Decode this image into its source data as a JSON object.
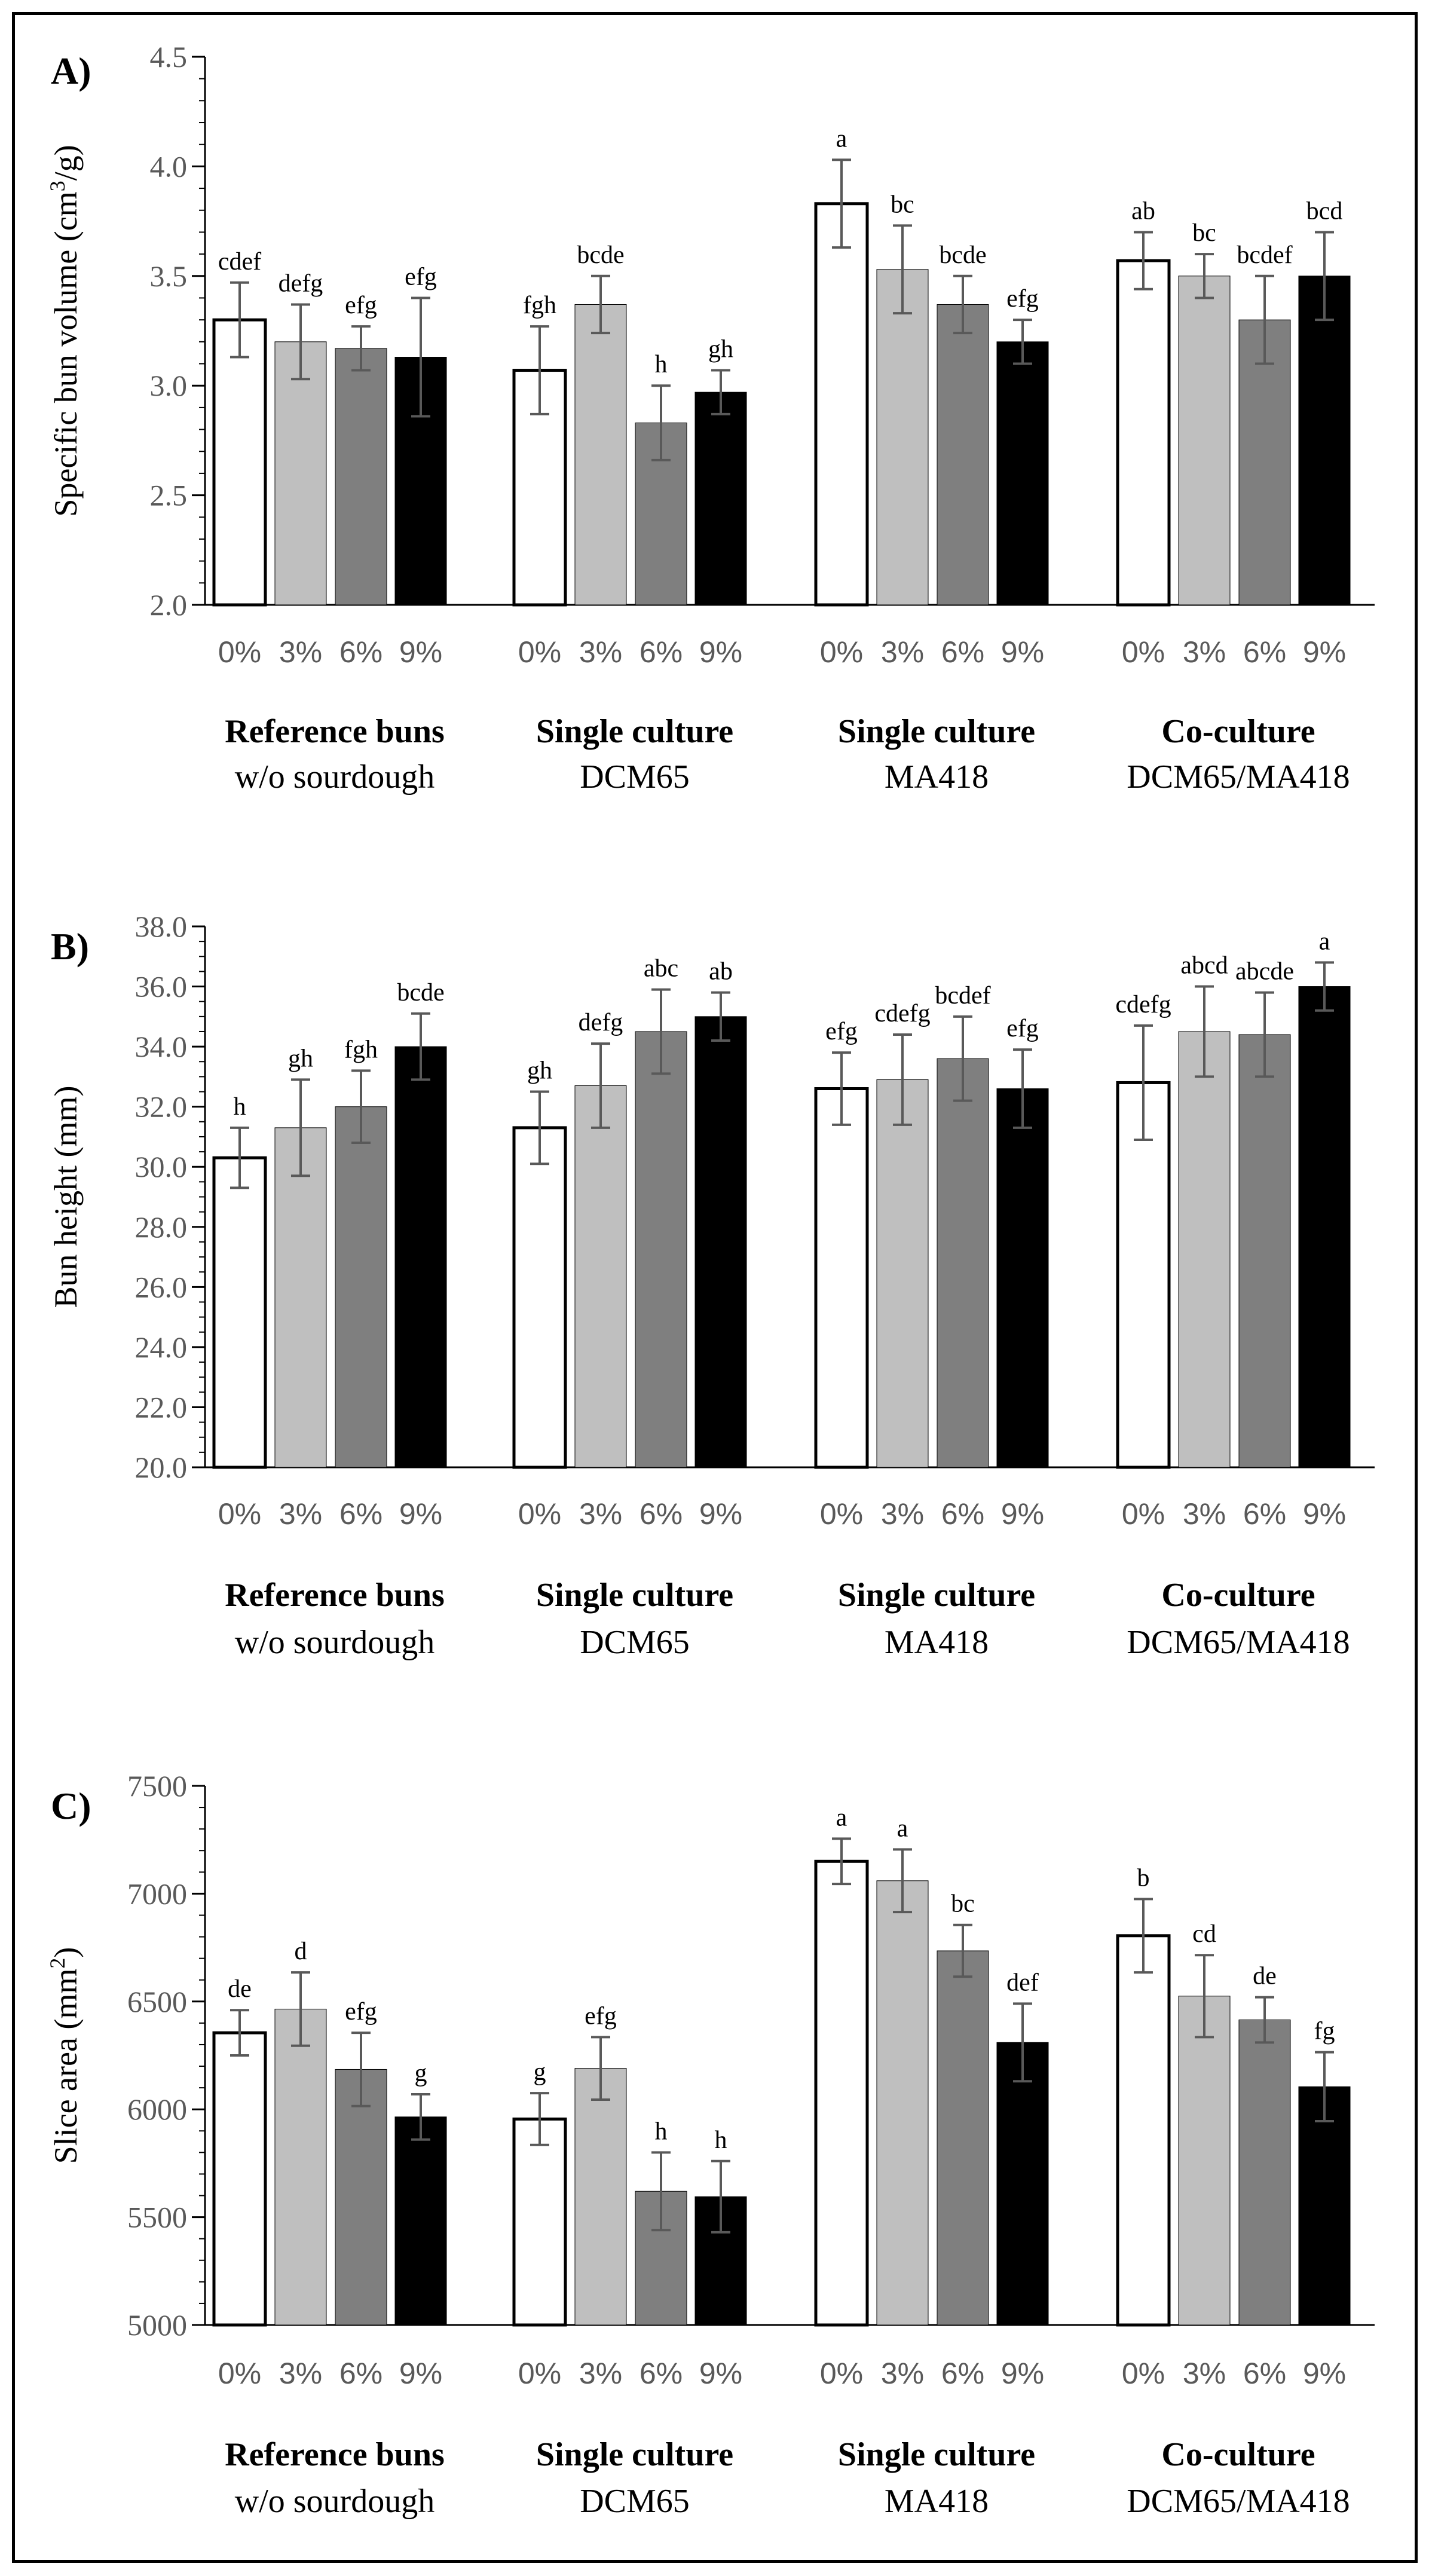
{
  "chart_data": [
    {
      "type": "bar",
      "panel_label": "A)",
      "ylabel_main": "Specific bun volume (cm",
      "ylabel_sup": "3",
      "ylabel_tail": "/g)",
      "ylim": [
        2.0,
        4.5
      ],
      "yticks": [
        "2.0",
        "2.5",
        "3.0",
        "3.5",
        "4.0",
        "4.5"
      ],
      "ytick_values": [
        2.0,
        2.5,
        3.0,
        3.5,
        4.0,
        4.5
      ],
      "minor_step": 0.1,
      "series_names": [
        "0%",
        "3%",
        "6%",
        "9%"
      ],
      "series_colors": [
        "#ffffff",
        "#bfbfbf",
        "#7f7f7f",
        "#000000"
      ],
      "groups": [
        {
          "title": "Reference buns",
          "subtitle": "w/o sourdough",
          "categories": [
            "0%",
            "3%",
            "6%",
            "9%"
          ],
          "values": [
            3.3,
            3.2,
            3.17,
            3.13
          ],
          "errors": [
            0.17,
            0.17,
            0.1,
            0.27
          ],
          "letters": [
            "cdef",
            "defg",
            "efg",
            "efg"
          ]
        },
        {
          "title": "Single culture",
          "subtitle": "DCM65",
          "categories": [
            "0%",
            "3%",
            "6%",
            "9%"
          ],
          "values": [
            3.07,
            3.37,
            2.83,
            2.97
          ],
          "errors": [
            0.2,
            0.13,
            0.17,
            0.1
          ],
          "letters": [
            "fgh",
            "bcde",
            "h",
            "gh"
          ]
        },
        {
          "title": "Single culture",
          "subtitle": "MA418",
          "categories": [
            "0%",
            "3%",
            "6%",
            "9%"
          ],
          "values": [
            3.83,
            3.53,
            3.37,
            3.2
          ],
          "errors": [
            0.2,
            0.2,
            0.13,
            0.1
          ],
          "letters": [
            "a",
            "bc",
            "bcde",
            "efg"
          ]
        },
        {
          "title": "Co-culture",
          "subtitle": "DCM65/MA418",
          "categories": [
            "0%",
            "3%",
            "6%",
            "9%"
          ],
          "values": [
            3.57,
            3.5,
            3.3,
            3.5
          ],
          "errors": [
            0.13,
            0.1,
            0.2,
            0.2
          ],
          "letters": [
            "ab",
            "bc",
            "bcdef",
            "bcd"
          ]
        }
      ]
    },
    {
      "type": "bar",
      "panel_label": "B)",
      "ylabel_main": "Bun height (mm)",
      "ylabel_sup": "",
      "ylabel_tail": "",
      "ylim": [
        20.0,
        38.0
      ],
      "yticks": [
        "20.0",
        "22.0",
        "24.0",
        "26.0",
        "28.0",
        "30.0",
        "32.0",
        "34.0",
        "36.0",
        "38.0"
      ],
      "ytick_values": [
        20,
        22,
        24,
        26,
        28,
        30,
        32,
        34,
        36,
        38
      ],
      "minor_step": 0.5,
      "series_names": [
        "0%",
        "3%",
        "6%",
        "9%"
      ],
      "series_colors": [
        "#ffffff",
        "#bfbfbf",
        "#7f7f7f",
        "#000000"
      ],
      "groups": [
        {
          "title": "Reference buns",
          "subtitle": "w/o sourdough",
          "categories": [
            "0%",
            "3%",
            "6%",
            "9%"
          ],
          "values": [
            30.3,
            31.3,
            32.0,
            34.0
          ],
          "errors": [
            1.0,
            1.6,
            1.2,
            1.1
          ],
          "letters": [
            "h",
            "gh",
            "fgh",
            "bcde"
          ]
        },
        {
          "title": "Single culture",
          "subtitle": "DCM65",
          "categories": [
            "0%",
            "3%",
            "6%",
            "9%"
          ],
          "values": [
            31.3,
            32.7,
            34.5,
            35.0
          ],
          "errors": [
            1.2,
            1.4,
            1.4,
            0.8
          ],
          "letters": [
            "gh",
            "defg",
            "abc",
            "ab"
          ]
        },
        {
          "title": "Single culture",
          "subtitle": "MA418",
          "categories": [
            "0%",
            "3%",
            "6%",
            "9%"
          ],
          "values": [
            32.6,
            32.9,
            33.6,
            32.6
          ],
          "errors": [
            1.2,
            1.5,
            1.4,
            1.3
          ],
          "letters": [
            "efg",
            "cdefg",
            "bcdef",
            "efg"
          ]
        },
        {
          "title": "Co-culture",
          "subtitle": "DCM65/MA418",
          "categories": [
            "0%",
            "3%",
            "6%",
            "9%"
          ],
          "values": [
            32.8,
            34.5,
            34.4,
            36.0
          ],
          "errors": [
            1.9,
            1.5,
            1.4,
            0.8
          ],
          "letters": [
            "cdefg",
            "abcd",
            "abcde",
            "a"
          ]
        }
      ]
    },
    {
      "type": "bar",
      "panel_label": "C)",
      "ylabel_main": "Slice area (mm",
      "ylabel_sup": "2",
      "ylabel_tail": ")",
      "ylim": [
        5000,
        7500
      ],
      "yticks": [
        "5000",
        "5500",
        "6000",
        "6500",
        "7000",
        "7500"
      ],
      "ytick_values": [
        5000,
        5500,
        6000,
        6500,
        7000,
        7500
      ],
      "minor_step": 100,
      "series_names": [
        "0%",
        "3%",
        "6%",
        "9%"
      ],
      "series_colors": [
        "#ffffff",
        "#bfbfbf",
        "#7f7f7f",
        "#000000"
      ],
      "groups": [
        {
          "title": "Reference buns",
          "subtitle": "w/o sourdough",
          "categories": [
            "0%",
            "3%",
            "6%",
            "9%"
          ],
          "values": [
            6355,
            6465,
            6185,
            5965
          ],
          "errors": [
            105,
            170,
            170,
            105
          ],
          "letters": [
            "de",
            "d",
            "efg",
            "g"
          ]
        },
        {
          "title": "Single culture",
          "subtitle": "DCM65",
          "categories": [
            "0%",
            "3%",
            "6%",
            "9%"
          ],
          "values": [
            5955,
            6190,
            5620,
            5595
          ],
          "errors": [
            120,
            145,
            180,
            165
          ],
          "letters": [
            "g",
            "efg",
            "h",
            "h"
          ]
        },
        {
          "title": "Single culture",
          "subtitle": "MA418",
          "categories": [
            "0%",
            "3%",
            "6%",
            "9%"
          ],
          "values": [
            7150,
            7060,
            6735,
            6310
          ],
          "errors": [
            105,
            145,
            120,
            180
          ],
          "letters": [
            "a",
            "a",
            "bc",
            "def"
          ]
        },
        {
          "title": "Co-culture",
          "subtitle": "DCM65/MA418",
          "categories": [
            "0%",
            "3%",
            "6%",
            "9%"
          ],
          "values": [
            6805,
            6525,
            6415,
            6105
          ],
          "errors": [
            170,
            190,
            105,
            160
          ],
          "letters": [
            "b",
            "cd",
            "de",
            "fg"
          ]
        }
      ]
    }
  ]
}
